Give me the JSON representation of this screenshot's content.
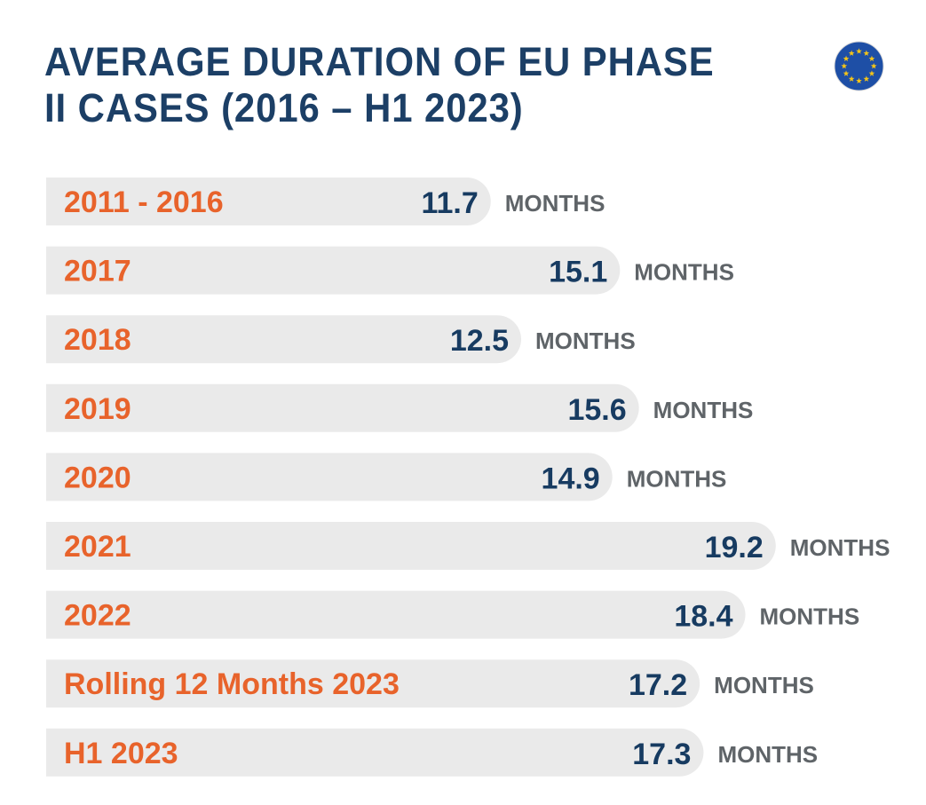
{
  "title": "AVERAGE DURATION OF EU PHASE II CASES (2016 – H1 2023)",
  "flag_icon": "eu-flag-icon",
  "colors": {
    "title": "#1c3f66",
    "category": "#e8632b",
    "value": "#173b61",
    "unit": "#5f6468",
    "bar": "#eaeaea",
    "flag_blue": "#1e4fa6",
    "flag_star": "#f5c518"
  },
  "chart_data": {
    "type": "bar",
    "orientation": "horizontal",
    "categories": [
      "2011 - 2016",
      "2017",
      "2018",
      "2019",
      "2020",
      "2021",
      "2022",
      "Rolling 12 Months 2023",
      "H1 2023"
    ],
    "values": [
      11.7,
      15.1,
      12.5,
      15.6,
      14.9,
      19.2,
      18.4,
      17.2,
      17.3
    ],
    "value_labels": [
      "11.7",
      "15.1",
      "12.5",
      "15.6",
      "14.9",
      "19.2",
      "18.4",
      "17.2",
      "17.3"
    ],
    "unit_label": "MONTHS",
    "title": "AVERAGE DURATION OF EU PHASE II CASES (2016 – H1 2023)",
    "xlabel": "",
    "ylabel": "",
    "xlim": [
      0,
      19.2
    ],
    "grid": false,
    "legend": "none"
  }
}
